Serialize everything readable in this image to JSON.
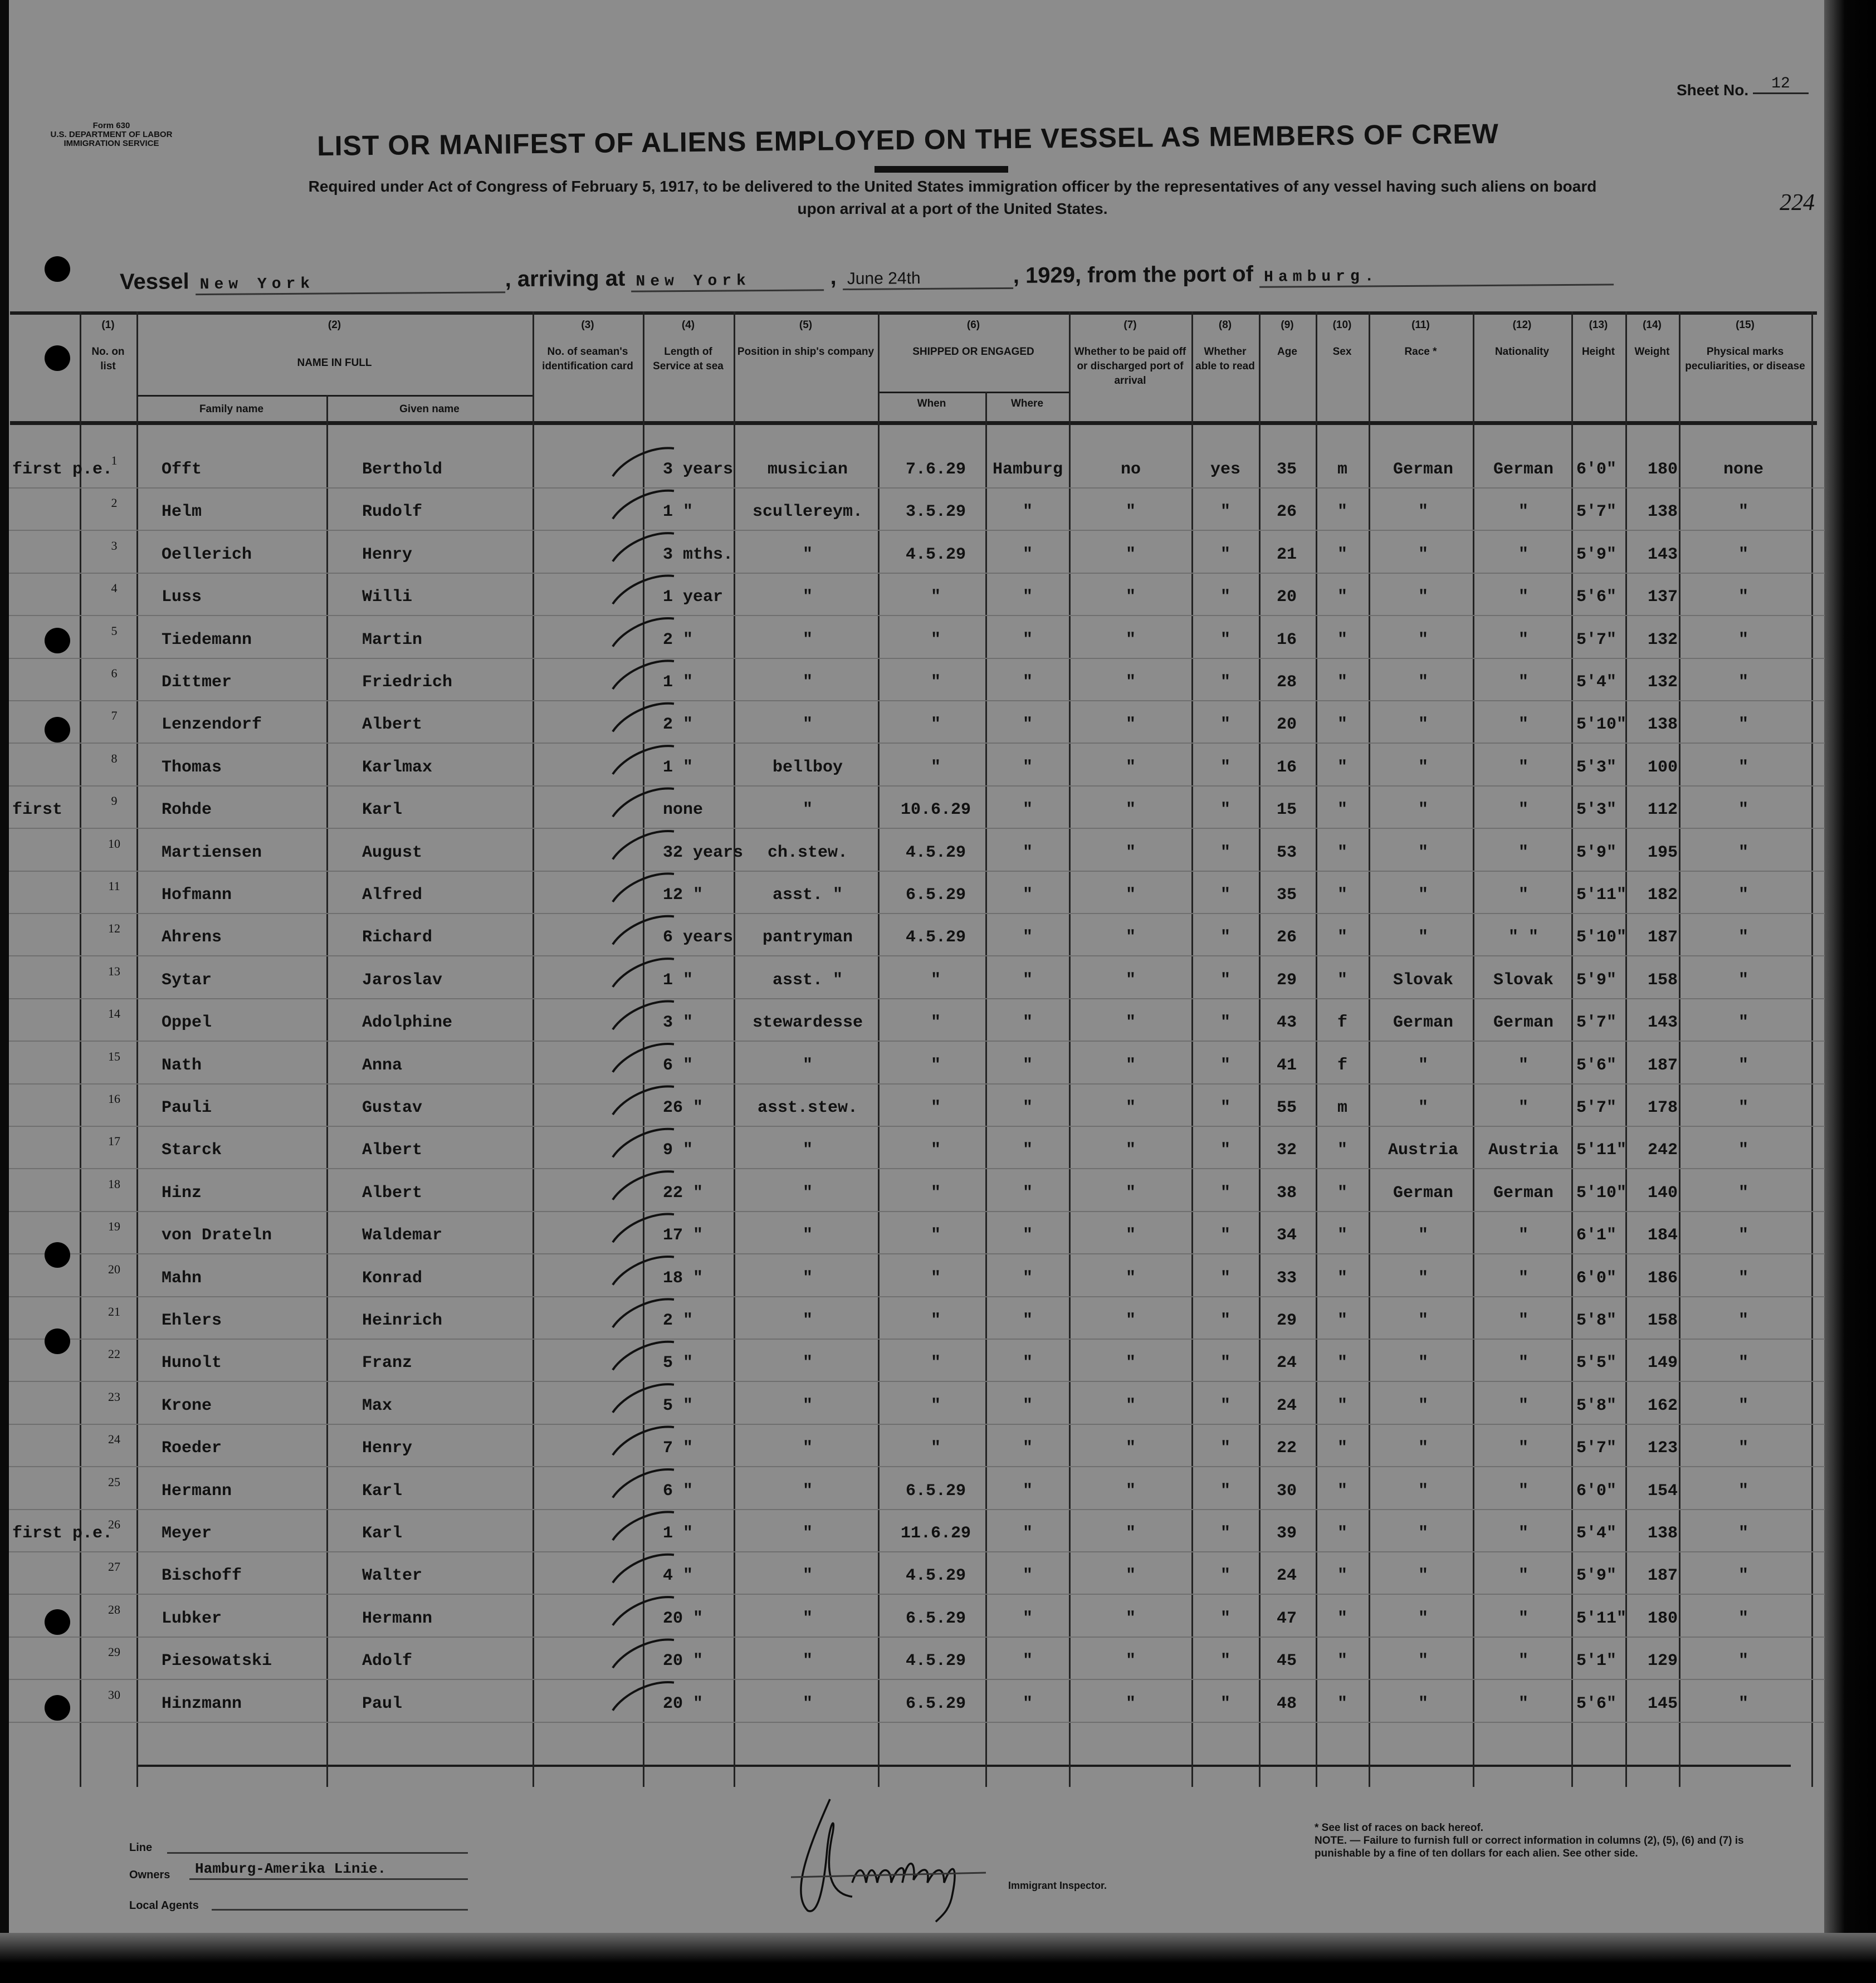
{
  "form": {
    "form_no": "Form 630",
    "department": "U.S. DEPARTMENT OF LABOR",
    "service": "IMMIGRATION SERVICE"
  },
  "sheet": {
    "label": "Sheet No.",
    "value": "12"
  },
  "title": "LIST OR MANIFEST OF ALIENS EMPLOYED ON THE VESSEL AS MEMBERS OF CREW",
  "subtitle_line1": "Required under Act of Congress of February 5, 1917, to be delivered to the United States immigration officer by the representatives of any vessel having such aliens on board",
  "subtitle_line2": "upon arrival at a port of the United States.",
  "stamp_number": "224",
  "vessel": {
    "label": "Vessel",
    "name": "New York",
    "arriving_label": ", arriving at",
    "arriving_port": "New York",
    "date": "June 24th",
    "year_prefix": ", 19",
    "year": "29",
    "from_label": ", from the port of",
    "from_port": "Hamburg."
  },
  "columns": [
    {
      "num": "(1)",
      "label": "No. on list"
    },
    {
      "num": "(2)",
      "label": "NAME IN FULL",
      "sub": [
        "Family name",
        "Given name"
      ]
    },
    {
      "num": "(3)",
      "label": "No. of seaman's identification card"
    },
    {
      "num": "(4)",
      "label": "Length of Service at sea"
    },
    {
      "num": "(5)",
      "label": "Position in ship's company"
    },
    {
      "num": "(6)",
      "label": "SHIPPED OR ENGAGED",
      "sub": [
        "When",
        "Where"
      ]
    },
    {
      "num": "(7)",
      "label": "Whether to be paid off or discharged port of arrival"
    },
    {
      "num": "(8)",
      "label": "Whether able to read"
    },
    {
      "num": "(9)",
      "label": "Age"
    },
    {
      "num": "(10)",
      "label": "Sex"
    },
    {
      "num": "(11)",
      "label": "Race *"
    },
    {
      "num": "(12)",
      "label": "Nationality"
    },
    {
      "num": "(13)",
      "label": "Height"
    },
    {
      "num": "(14)",
      "label": "Weight"
    },
    {
      "num": "(15)",
      "label": "Physical marks peculiarities, or disease"
    }
  ],
  "rows": [
    [
      "1",
      "first p.e.",
      "Offt",
      "Berthold",
      "3 years",
      "musician",
      "7.6.29",
      "Hamburg",
      "no",
      "yes",
      "35",
      "m",
      "German",
      "German",
      "6'0\"",
      "180",
      "none"
    ],
    [
      "2",
      "",
      "Helm",
      "Rudolf",
      "1 \"",
      "scullereym.",
      "3.5.29",
      "\"",
      "\"",
      "\"",
      "26",
      "\"",
      "\"",
      "\"",
      "5'7\"",
      "138",
      "\""
    ],
    [
      "3",
      "",
      "Oellerich",
      "Henry",
      "3 mths.",
      "\"",
      "4.5.29",
      "\"",
      "\"",
      "\"",
      "21",
      "\"",
      "\"",
      "\"",
      "5'9\"",
      "143",
      "\""
    ],
    [
      "4",
      "",
      "Luss",
      "Willi",
      "1 year",
      "\"",
      "\"",
      "\"",
      "\"",
      "\"",
      "20",
      "\"",
      "\"",
      "\"",
      "5'6\"",
      "137",
      "\""
    ],
    [
      "5",
      "",
      "Tiedemann",
      "Martin",
      "2 \"",
      "\"",
      "\"",
      "\"",
      "\"",
      "\"",
      "16",
      "\"",
      "\"",
      "\"",
      "5'7\"",
      "132",
      "\""
    ],
    [
      "6",
      "",
      "Dittmer",
      "Friedrich",
      "1 \"",
      "\"",
      "\"",
      "\"",
      "\"",
      "\"",
      "28",
      "\"",
      "\"",
      "\"",
      "5'4\"",
      "132",
      "\""
    ],
    [
      "7",
      "",
      "Lenzendorf",
      "Albert",
      "2 \"",
      "\"",
      "\"",
      "\"",
      "\"",
      "\"",
      "20",
      "\"",
      "\"",
      "\"",
      "5'10\"",
      "138",
      "\""
    ],
    [
      "8",
      "",
      "Thomas",
      "Karlmax",
      "1 \"",
      "bellboy",
      "\"",
      "\"",
      "\"",
      "\"",
      "16",
      "\"",
      "\"",
      "\"",
      "5'3\"",
      "100",
      "\""
    ],
    [
      "9",
      "first",
      "Rohde",
      "Karl",
      "none",
      "\"",
      "10.6.29",
      "\"",
      "\"",
      "\"",
      "15",
      "\"",
      "\"",
      "\"",
      "5'3\"",
      "112",
      "\""
    ],
    [
      "10",
      "",
      "Martiensen",
      "August",
      "32 years",
      "ch.stew.",
      "4.5.29",
      "\"",
      "\"",
      "\"",
      "53",
      "\"",
      "\"",
      "\"",
      "5'9\"",
      "195",
      "\""
    ],
    [
      "11",
      "",
      "Hofmann",
      "Alfred",
      "12 \"",
      "asst. \"",
      "6.5.29",
      "\"",
      "\"",
      "\"",
      "35",
      "\"",
      "\"",
      "\"",
      "5'11\"",
      "182",
      "\""
    ],
    [
      "12",
      "",
      "Ahrens",
      "Richard",
      "6 years",
      "pantryman",
      "4.5.29",
      "\"",
      "\"",
      "\"",
      "26",
      "\"",
      "\"",
      "\" \"",
      "5'10\"",
      "187",
      "\""
    ],
    [
      "13",
      "",
      "Sytar",
      "Jaroslav",
      "1 \"",
      "asst. \"",
      "\"",
      "\"",
      "\"",
      "\"",
      "29",
      "\"",
      "Slovak",
      "Slovak",
      "5'9\"",
      "158",
      "\""
    ],
    [
      "14",
      "",
      "Oppel",
      "Adolphine",
      "3 \"",
      "stewardesse",
      "\"",
      "\"",
      "\"",
      "\"",
      "43",
      "f",
      "German",
      "German",
      "5'7\"",
      "143",
      "\""
    ],
    [
      "15",
      "",
      "Nath",
      "Anna",
      "6 \"",
      "\"",
      "\"",
      "\"",
      "\"",
      "\"",
      "41",
      "f",
      "\"",
      "\"",
      "5'6\"",
      "187",
      "\""
    ],
    [
      "16",
      "",
      "Pauli",
      "Gustav",
      "26 \"",
      "asst.stew.",
      "\"",
      "\"",
      "\"",
      "\"",
      "55",
      "m",
      "\"",
      "\"",
      "5'7\"",
      "178",
      "\""
    ],
    [
      "17",
      "",
      "Starck",
      "Albert",
      "9 \"",
      "\"",
      "\"",
      "\"",
      "\"",
      "\"",
      "32",
      "\"",
      "Austria",
      "Austria",
      "5'11\"",
      "242",
      "\""
    ],
    [
      "18",
      "",
      "Hinz",
      "Albert",
      "22 \"",
      "\"",
      "\"",
      "\"",
      "\"",
      "\"",
      "38",
      "\"",
      "German",
      "German",
      "5'10\"",
      "140",
      "\""
    ],
    [
      "19",
      "",
      "von Drateln",
      "Waldemar",
      "17 \"",
      "\"",
      "\"",
      "\"",
      "\"",
      "\"",
      "34",
      "\"",
      "\"",
      "\"",
      "6'1\"",
      "184",
      "\""
    ],
    [
      "20",
      "",
      "Mahn",
      "Konrad",
      "18 \"",
      "\"",
      "\"",
      "\"",
      "\"",
      "\"",
      "33",
      "\"",
      "\"",
      "\"",
      "6'0\"",
      "186",
      "\""
    ],
    [
      "21",
      "",
      "Ehlers",
      "Heinrich",
      "2 \"",
      "\"",
      "\"",
      "\"",
      "\"",
      "\"",
      "29",
      "\"",
      "\"",
      "\"",
      "5'8\"",
      "158",
      "\""
    ],
    [
      "22",
      "",
      "Hunolt",
      "Franz",
      "5 \"",
      "\"",
      "\"",
      "\"",
      "\"",
      "\"",
      "24",
      "\"",
      "\"",
      "\"",
      "5'5\"",
      "149",
      "\""
    ],
    [
      "23",
      "",
      "Krone",
      "Max",
      "5 \"",
      "\"",
      "\"",
      "\"",
      "\"",
      "\"",
      "24",
      "\"",
      "\"",
      "\"",
      "5'8\"",
      "162",
      "\""
    ],
    [
      "24",
      "",
      "Roeder",
      "Henry",
      "7 \"",
      "\"",
      "\"",
      "\"",
      "\"",
      "\"",
      "22",
      "\"",
      "\"",
      "\"",
      "5'7\"",
      "123",
      "\""
    ],
    [
      "25",
      "",
      "Hermann",
      "Karl",
      "6 \"",
      "\"",
      "6.5.29",
      "\"",
      "\"",
      "\"",
      "30",
      "\"",
      "\"",
      "\"",
      "6'0\"",
      "154",
      "\""
    ],
    [
      "26",
      "first p.e.",
      "Meyer",
      "Karl",
      "1 \"",
      "\"",
      "11.6.29",
      "\"",
      "\"",
      "\"",
      "39",
      "\"",
      "\"",
      "\"",
      "5'4\"",
      "138",
      "\""
    ],
    [
      "27",
      "",
      "Bischoff",
      "Walter",
      "4 \"",
      "\"",
      "4.5.29",
      "\"",
      "\"",
      "\"",
      "24",
      "\"",
      "\"",
      "\"",
      "5'9\"",
      "187",
      "\""
    ],
    [
      "28",
      "",
      "Lubker",
      "Hermann",
      "20 \"",
      "\"",
      "6.5.29",
      "\"",
      "\"",
      "\"",
      "47",
      "\"",
      "\"",
      "\"",
      "5'11\"",
      "180",
      "\""
    ],
    [
      "29",
      "",
      "Piesowatski",
      "Adolf",
      "20 \"",
      "\"",
      "4.5.29",
      "\"",
      "\"",
      "\"",
      "45",
      "\"",
      "\"",
      "\"",
      "5'1\"",
      "129",
      "\""
    ],
    [
      "30",
      "",
      "Hinzmann",
      "Paul",
      "20 \"",
      "\"",
      "6.5.29",
      "\"",
      "\"",
      "\"",
      "48",
      "\"",
      "\"",
      "\"",
      "5'6\"",
      "145",
      "\""
    ]
  ],
  "footer": {
    "line_label": "Line",
    "owners_label": "Owners",
    "owners_value": "Hamburg-Amerika Linie.",
    "agents_label": "Local Agents",
    "inspector_label": "Immigrant Inspector.",
    "signature": "J. McOldrug",
    "race_note": "* See list of races on back hereof.",
    "note": "NOTE. — Failure to furnish full or correct information in columns (2), (5), (6) and (7) is punishable by a fine of ten dollars for each alien. See other side."
  },
  "colors": {
    "paper": "#8c8c8c",
    "ink": "#111111"
  }
}
